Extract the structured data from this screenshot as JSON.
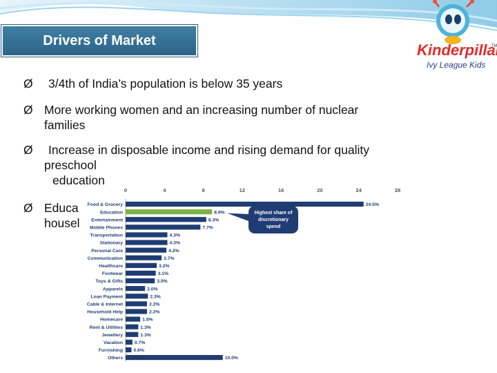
{
  "slide": {
    "title": "Drivers of Market",
    "logo": {
      "brand": "Kinderpillar",
      "tm": "TM",
      "tagline": "Ivy League Kids"
    },
    "bullet_mark": "Ø",
    "bullets": [
      {
        "lines": [
          "3/4th of India’s population is below 35 years"
        ]
      },
      {
        "lines": [
          "More working women and an increasing number of nuclear",
          "families"
        ]
      },
      {
        "lines": [
          "Increase in disposable income and rising demand for quality",
          "preschool",
          "education"
        ]
      },
      {
        "lines": [
          "Educa",
          "housel"
        ]
      }
    ]
  },
  "chart_data": {
    "type": "bar",
    "orientation": "horizontal",
    "xlim": [
      0,
      28
    ],
    "xticks": [
      "0",
      "4",
      "8",
      "12",
      "16",
      "20",
      "24",
      "28"
    ],
    "categories": [
      "Food & Grocery",
      "Education",
      "Entertainment",
      "Mobile Phones",
      "Transportation",
      "Stationary",
      "Personal Care",
      "Communication",
      "Healthcare",
      "Footwear",
      "Toys & Gifts",
      "Apparels",
      "Loan Payment",
      "Cable & Internet",
      "Household Help",
      "Homecare",
      "Rent & Utilities",
      "Jewellery",
      "Vacation",
      "Furnishing",
      "Others"
    ],
    "values": [
      24.5,
      8.9,
      8.3,
      7.7,
      4.3,
      4.3,
      4.2,
      3.7,
      3.2,
      3.1,
      3.0,
      2.0,
      2.3,
      2.2,
      2.2,
      1.5,
      1.3,
      1.3,
      0.7,
      0.6,
      10.0
    ],
    "value_labels": [
      "24.5%",
      "8.9%",
      "8.3%",
      "7.7%",
      "4.3%",
      "4.3%",
      "4.2%",
      "3.7%",
      "3.2%",
      "3.1%",
      "3.0%",
      "2.0%",
      "2.3%",
      "2.2%",
      "2.2%",
      "1.5%",
      "1.3%",
      "1.3%",
      "0.7%",
      "0.6%",
      "10.0%"
    ],
    "highlight_index": 1,
    "colors": {
      "bar": "#1f3c73",
      "highlight": "#7cb342",
      "callout": "#1f3c73"
    },
    "annotation": {
      "text": "Highest share of discretionary spend"
    }
  }
}
